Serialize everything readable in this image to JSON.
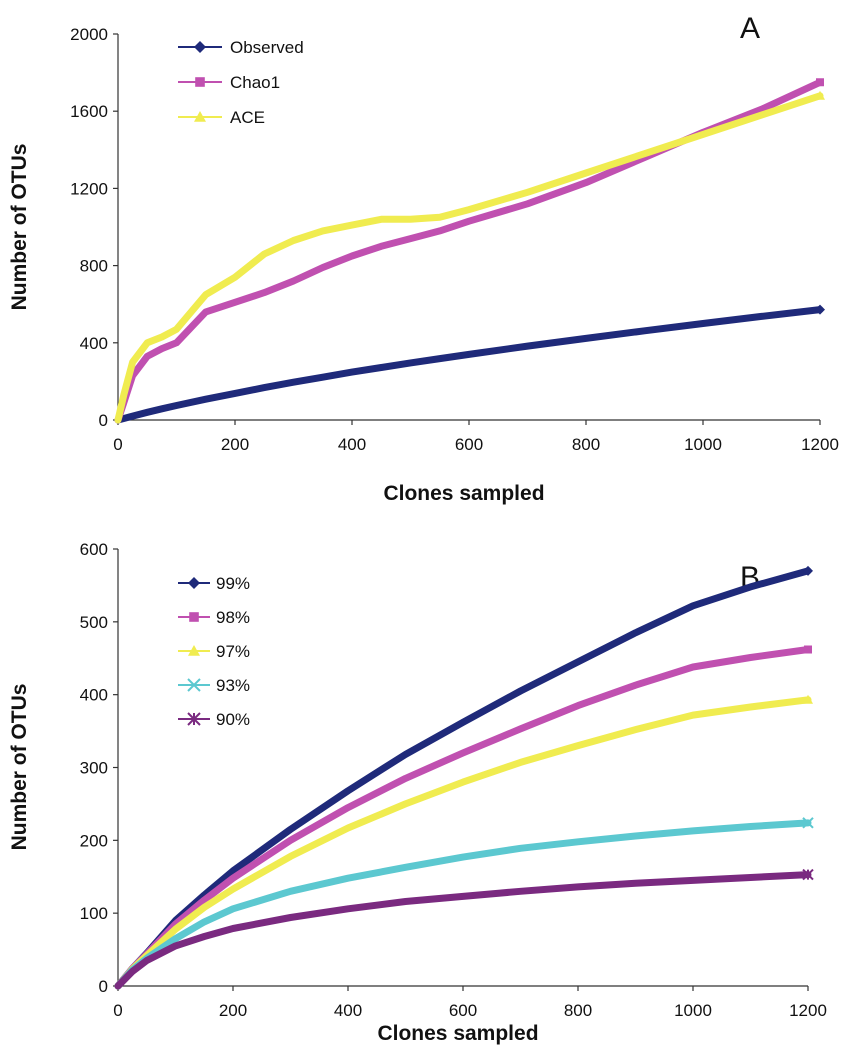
{
  "chart_data": [
    {
      "type": "line",
      "panel_label": "A",
      "xlabel": "Clones sampled",
      "ylabel": "Number of OTUs",
      "xlim": [
        0,
        1200
      ],
      "ylim": [
        0,
        2000
      ],
      "x_ticks": [
        "0",
        "200",
        "400",
        "600",
        "800",
        "1000",
        "1200"
      ],
      "y_ticks": [
        "0",
        "400",
        "800",
        "1200",
        "1600",
        "2000"
      ],
      "grid": false,
      "legend_position": "top-left",
      "x": [
        0,
        10,
        25,
        50,
        75,
        100,
        150,
        200,
        250,
        300,
        350,
        400,
        450,
        500,
        550,
        600,
        700,
        800,
        900,
        1000,
        1100,
        1200
      ],
      "series": [
        {
          "name": "Observed",
          "marker": "diamond",
          "color": "#1f2a7a",
          "values": [
            0,
            8,
            20,
            40,
            58,
            75,
            108,
            138,
            168,
            196,
            222,
            248,
            272,
            296,
            318,
            340,
            383,
            423,
            462,
            500,
            537,
            572
          ]
        },
        {
          "name": "Chao1",
          "marker": "square",
          "color": "#c050b0",
          "values": [
            0,
            90,
            230,
            330,
            370,
            400,
            560,
            610,
            660,
            720,
            790,
            850,
            900,
            940,
            980,
            1030,
            1120,
            1230,
            1360,
            1490,
            1610,
            1750
          ]
        },
        {
          "name": "ACE",
          "marker": "triangle",
          "color": "#f0ec50",
          "values": [
            0,
            130,
            300,
            400,
            430,
            470,
            650,
            740,
            860,
            930,
            980,
            1010,
            1040,
            1040,
            1050,
            1090,
            1180,
            1280,
            1380,
            1480,
            1580,
            1680
          ]
        }
      ]
    },
    {
      "type": "line",
      "panel_label": "B",
      "xlabel": "Clones sampled",
      "ylabel": "Number of OTUs",
      "xlim": [
        0,
        1200
      ],
      "ylim": [
        0,
        600
      ],
      "x_ticks": [
        "0",
        "200",
        "400",
        "600",
        "800",
        "1000",
        "1200"
      ],
      "y_ticks": [
        "0",
        "100",
        "200",
        "300",
        "400",
        "500",
        "600"
      ],
      "grid": false,
      "legend_position": "top-left",
      "x": [
        0,
        25,
        50,
        100,
        150,
        200,
        300,
        400,
        500,
        600,
        700,
        800,
        900,
        1000,
        1100,
        1200
      ],
      "series": [
        {
          "name": "99%",
          "marker": "diamond",
          "color": "#1f2a7a",
          "values": [
            0,
            24,
            45,
            90,
            125,
            158,
            215,
            268,
            318,
            362,
            405,
            445,
            485,
            522,
            548,
            570
          ]
        },
        {
          "name": "98%",
          "marker": "square",
          "color": "#c050b0",
          "values": [
            0,
            24,
            44,
            85,
            118,
            148,
            200,
            245,
            285,
            320,
            353,
            385,
            413,
            438,
            451,
            462
          ]
        },
        {
          "name": "97%",
          "marker": "triangle",
          "color": "#f0ec50",
          "values": [
            0,
            23,
            42,
            78,
            108,
            133,
            178,
            217,
            250,
            280,
            307,
            330,
            352,
            372,
            383,
            393
          ]
        },
        {
          "name": "93%",
          "marker": "x",
          "color": "#5cc8d0",
          "values": [
            0,
            22,
            38,
            65,
            88,
            106,
            130,
            148,
            163,
            177,
            189,
            198,
            206,
            213,
            219,
            224
          ]
        },
        {
          "name": "90%",
          "marker": "asterisk",
          "color": "#7a2a80",
          "values": [
            0,
            20,
            35,
            55,
            68,
            79,
            94,
            106,
            116,
            123,
            130,
            136,
            141,
            145,
            149,
            153
          ]
        }
      ]
    }
  ]
}
